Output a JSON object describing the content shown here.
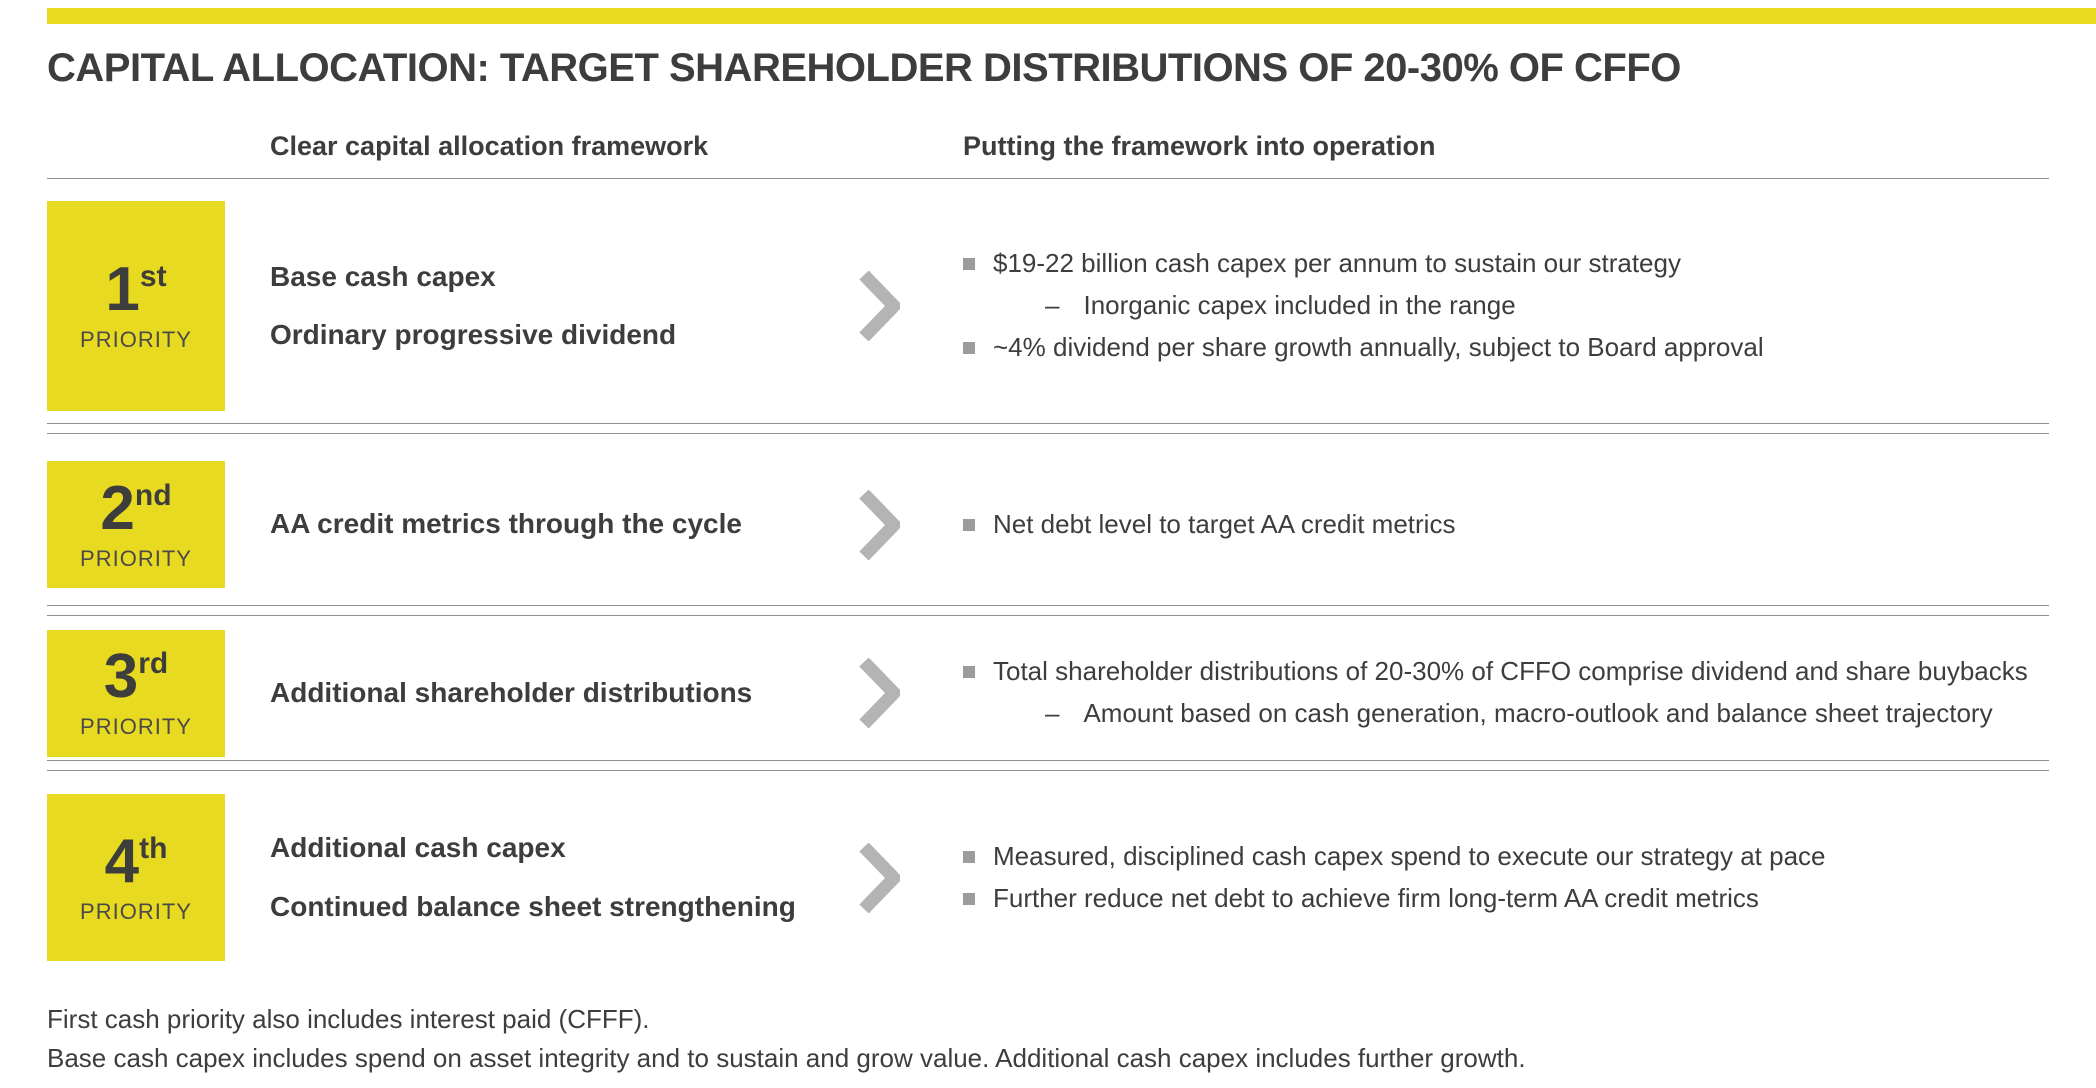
{
  "page": {
    "title": "CAPITAL ALLOCATION: TARGET SHAREHOLDER DISTRIBUTIONS OF 20-30% OF CFFO"
  },
  "colors": {
    "accent": "#e8da20",
    "text": "#3d3d3c",
    "chevron": "#b4b4b4",
    "bullet": "#9c9c9c",
    "divider": "#8f8f8f"
  },
  "markers": {
    "sub_bullet": "–"
  },
  "columns": {
    "framework_header": "Clear capital allocation framework",
    "operation_header": "Putting the framework into operation"
  },
  "rows": [
    {
      "priority_number": "1",
      "priority_suffix": "st",
      "priority_label": "PRIORITY",
      "framework_lines": [
        "Base cash capex",
        "Ordinary progressive dividend"
      ],
      "bullets": [
        {
          "text": "$19-22 billion cash capex per annum to sustain our strategy",
          "sub": [
            "Inorganic capex included in the range"
          ]
        },
        {
          "text": "~4% dividend per share growth annually, subject to Board approval",
          "sub": []
        }
      ]
    },
    {
      "priority_number": "2",
      "priority_suffix": "nd",
      "priority_label": "PRIORITY",
      "framework_lines": [
        "AA credit metrics through the cycle"
      ],
      "bullets": [
        {
          "text": "Net debt level to target AA credit metrics",
          "sub": []
        }
      ]
    },
    {
      "priority_number": "3",
      "priority_suffix": "rd",
      "priority_label": "PRIORITY",
      "framework_lines": [
        "Additional shareholder distributions"
      ],
      "bullets": [
        {
          "text": "Total shareholder distributions of 20-30% of CFFO comprise dividend and share buybacks",
          "sub": [
            "Amount based on cash generation, macro-outlook and balance sheet trajectory"
          ]
        }
      ]
    },
    {
      "priority_number": "4",
      "priority_suffix": "th",
      "priority_label": "PRIORITY",
      "framework_lines": [
        "Additional cash capex",
        "Continued balance sheet strengthening"
      ],
      "bullets": [
        {
          "text": "Measured, disciplined cash capex spend to execute our strategy at pace",
          "sub": []
        },
        {
          "text": "Further reduce net debt to achieve firm long-term AA credit metrics",
          "sub": []
        }
      ]
    }
  ],
  "footnotes": [
    "First cash priority also includes interest paid (CFFF).",
    "Base cash capex includes spend on asset integrity and to sustain and grow value. Additional cash capex includes further growth."
  ]
}
